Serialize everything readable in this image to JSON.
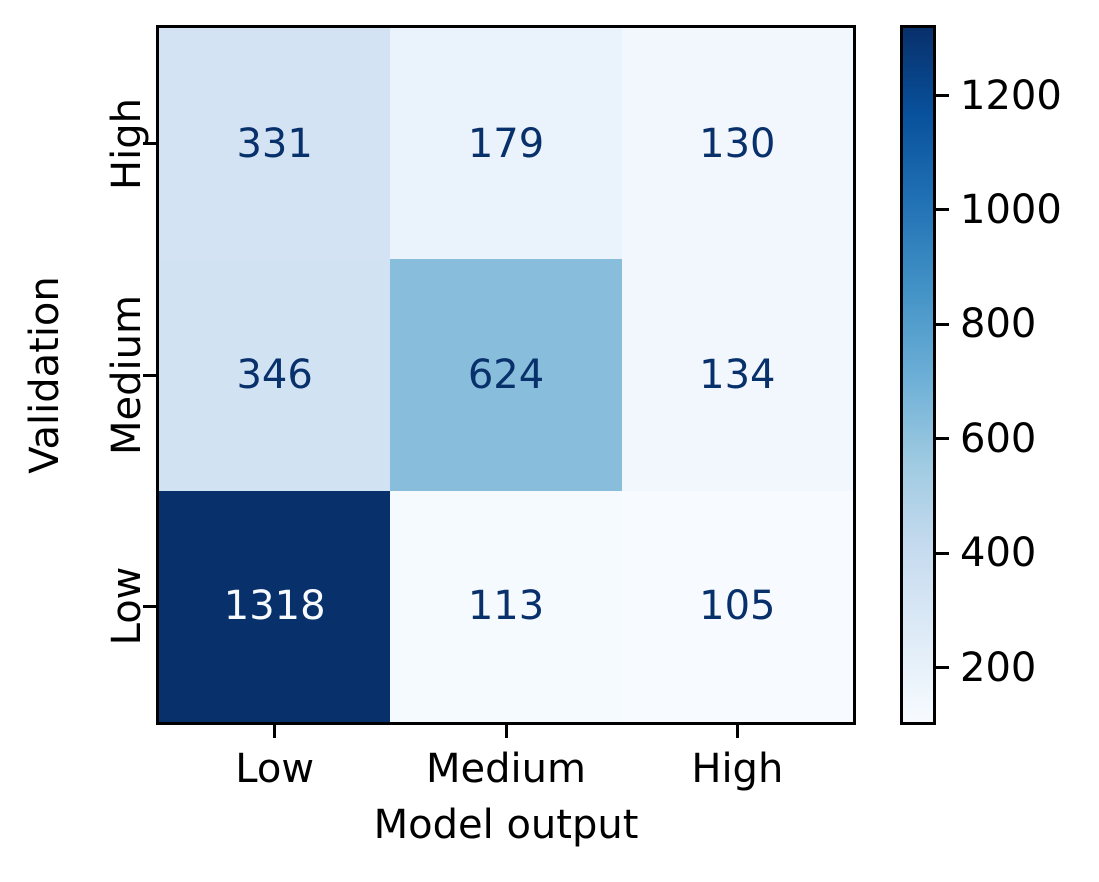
{
  "chart_data": {
    "type": "heatmap",
    "title": "",
    "xlabel": "Model output",
    "ylabel": "Validation",
    "x_categories": [
      "Low",
      "Medium",
      "High"
    ],
    "y_categories": [
      "High",
      "Medium",
      "Low"
    ],
    "values": [
      [
        331,
        179,
        130
      ],
      [
        346,
        624,
        134
      ],
      [
        1318,
        113,
        105
      ]
    ],
    "vmin": 105,
    "vmax": 1318,
    "colormap": "Blues",
    "grid": false,
    "legend_position": "right-colorbar",
    "colorbar_ticks": [
      1200,
      1000,
      800,
      600,
      400,
      200
    ],
    "colors": {
      "cell_colors": [
        [
          "#d3e3f3",
          "#eaf2fb",
          "#f2f7fd"
        ],
        [
          "#d1e2f2",
          "#88bedc",
          "#f1f7fd"
        ],
        [
          "#08306b",
          "#f5fafe",
          "#f7fbff"
        ]
      ],
      "annotation_dark": "#08306b",
      "annotation_light": "#f7fbff",
      "axis_color": "#000000",
      "colormap_stops_top_to_bottom": [
        "#08306b",
        "#08519c",
        "#2171b5",
        "#4292c6",
        "#6baed6",
        "#9ecae1",
        "#c6dbef",
        "#deebf7",
        "#f7fbff"
      ]
    }
  }
}
